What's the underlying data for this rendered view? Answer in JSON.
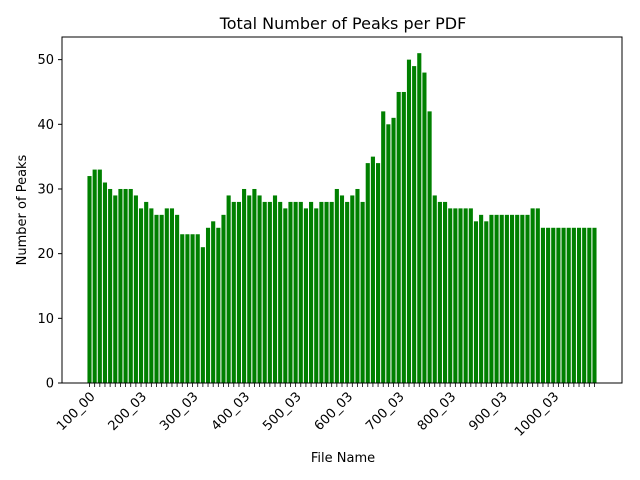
{
  "chart_data": {
    "type": "bar",
    "title": "Total Number of Peaks per PDF",
    "xlabel": "File Name",
    "ylabel": "Number of Peaks",
    "ylim": [
      0,
      53.5
    ],
    "yticks": [
      0,
      10,
      20,
      30,
      40,
      50
    ],
    "xtick_labels": [
      "100_00",
      "200_03",
      "300_03",
      "400_03",
      "500_03",
      "600_03",
      "700_03",
      "800_03",
      "900_03",
      "1000_03"
    ],
    "bar_color": "#008000",
    "grid": false,
    "values": [
      32,
      33,
      33,
      31,
      30,
      29,
      30,
      30,
      30,
      29,
      27,
      28,
      27,
      26,
      26,
      27,
      27,
      26,
      23,
      23,
      23,
      23,
      21,
      24,
      25,
      24,
      26,
      29,
      28,
      28,
      30,
      29,
      30,
      29,
      28,
      28,
      29,
      28,
      27,
      28,
      28,
      28,
      27,
      28,
      27,
      28,
      28,
      28,
      30,
      29,
      28,
      29,
      30,
      28,
      34,
      35,
      34,
      42,
      40,
      41,
      45,
      45,
      50,
      49,
      51,
      48,
      42,
      29,
      28,
      28,
      27,
      27,
      27,
      27,
      27,
      25,
      26,
      25,
      26,
      26,
      26,
      26,
      26,
      26,
      26,
      26,
      27,
      27,
      24,
      24,
      24,
      24,
      24,
      24,
      24,
      24,
      24,
      24,
      24
    ]
  }
}
